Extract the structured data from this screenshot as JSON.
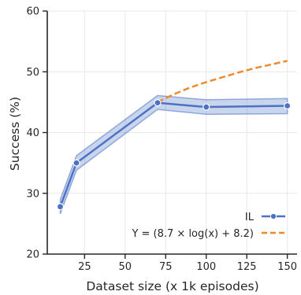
{
  "chart_data": {
    "type": "line",
    "xlabel": "Dataset size (x 1k episodes)",
    "ylabel": "Success (%)",
    "xlim": [
      2,
      156
    ],
    "ylim": [
      20,
      60
    ],
    "xticks": [
      25,
      50,
      75,
      100,
      125,
      150
    ],
    "yticks": [
      20,
      30,
      40,
      50,
      60
    ],
    "grid": true,
    "legend_position": "bottom-right",
    "series": [
      {
        "name": "IL",
        "style": "solid-with-markers",
        "color": "#4c72c4",
        "x": [
          10,
          20,
          70,
          100,
          150
        ],
        "y": [
          27.8,
          35.0,
          44.9,
          44.2,
          44.4
        ],
        "band_low": [
          26.6,
          33.8,
          43.8,
          43.0,
          43.1
        ],
        "band_high": [
          29.0,
          36.2,
          46.1,
          45.4,
          45.6
        ]
      },
      {
        "name": "Y = (8.7 × log(x) + 8.2)",
        "style": "dashed",
        "color": "#ee8a2c",
        "x": [
          70,
          80,
          90,
          100,
          110,
          120,
          130,
          140,
          150
        ],
        "y": [
          45.0,
          46.3,
          47.4,
          48.3,
          49.1,
          49.9,
          50.6,
          51.2,
          51.8
        ]
      }
    ]
  }
}
